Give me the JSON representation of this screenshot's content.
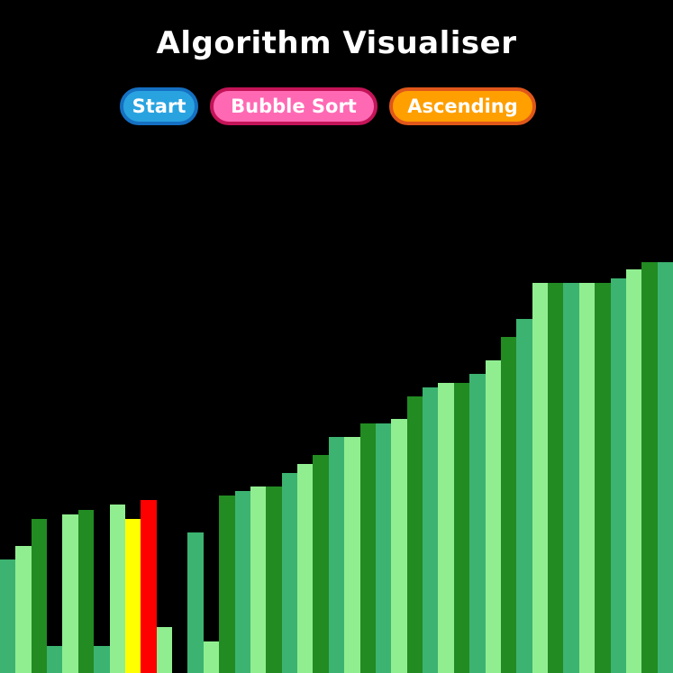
{
  "header": {
    "title": "Algorithm Visualiser"
  },
  "controls": {
    "start": {
      "label": "Start",
      "fill": "#29a3e0",
      "border": "#1570c2"
    },
    "algorithm": {
      "label": "Bubble Sort",
      "fill": "#ff69b4",
      "border": "#c41458"
    },
    "order": {
      "label": "Ascending",
      "fill": "#ff9f00",
      "border": "#e0571a"
    }
  },
  "array": {
    "max_value": 100,
    "colors": {
      "normal": [
        "#3cb371",
        "#90ee90",
        "#228b22"
      ],
      "comparing_a": "#ffff00",
      "comparing_b": "#ff0000"
    },
    "values": [
      27.7,
      30.9,
      37.6,
      6.6,
      38.7,
      39.8,
      6.6,
      40.9,
      37.6,
      42.0,
      11.1,
      0.0,
      34.3,
      7.7,
      43.1,
      44.2,
      45.3,
      45.3,
      48.6,
      50.8,
      53.0,
      57.5,
      57.5,
      60.8,
      60.8,
      61.9,
      67.4,
      69.6,
      70.7,
      70.7,
      72.9,
      76.2,
      81.8,
      86.2,
      95.0,
      95.0,
      95.0,
      95.0,
      95.0,
      96.1,
      98.3,
      100.0,
      100.0
    ],
    "color_keys": [
      0,
      1,
      2,
      0,
      1,
      2,
      0,
      1,
      "a",
      "b",
      1,
      2,
      0,
      1,
      2,
      0,
      1,
      2,
      0,
      1,
      2,
      0,
      1,
      2,
      0,
      1,
      2,
      0,
      1,
      2,
      0,
      1,
      2,
      0,
      1,
      2,
      0,
      1,
      2,
      0,
      1,
      2,
      0
    ]
  }
}
